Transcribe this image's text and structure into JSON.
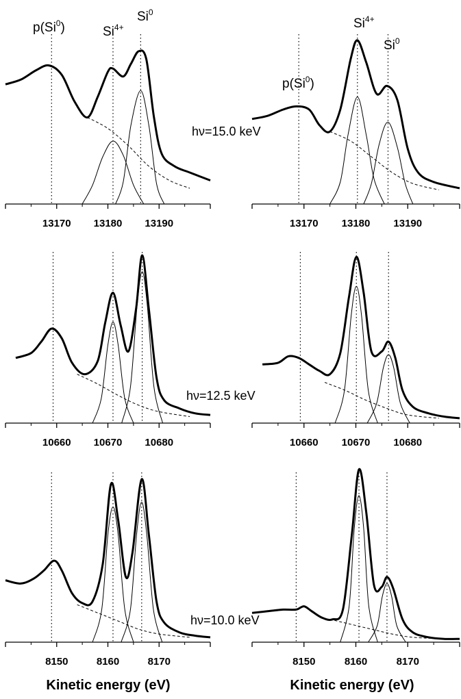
{
  "chart_data": [
    {
      "type": "line",
      "title": "",
      "xticks": [
        13170,
        13180,
        13190
      ],
      "xlim": [
        13160,
        13200
      ],
      "photon_energy_label": "hν=15.0 keV",
      "peak_labels": [
        {
          "base": "p(Si",
          "sup": "0",
          "tail": ")"
        },
        {
          "base": "Si",
          "sup": "4+",
          "tail": ""
        },
        {
          "base": "Si",
          "sup": "0",
          "tail": ""
        }
      ],
      "reference_lines": [
        13169,
        13181,
        13186.4
      ],
      "series": [
        {
          "role": "measured",
          "x": [
            13160.0,
            13163.0,
            13166.0,
            13168.5,
            13171.0,
            13173.5,
            13176.0,
            13178.0,
            13180.0,
            13181.0,
            13183.0,
            13184.5,
            13186.0,
            13187.5,
            13189.0,
            13190.5,
            13193.0,
            13196.0,
            13200.0
          ],
          "y": [
            0.76,
            0.79,
            0.85,
            0.88,
            0.82,
            0.65,
            0.55,
            0.68,
            0.84,
            0.86,
            0.81,
            0.89,
            0.97,
            0.92,
            0.55,
            0.32,
            0.24,
            0.2,
            0.15
          ]
        },
        {
          "role": "component",
          "name": "",
          "x": [
            13175.0,
            13177.0,
            13179.0,
            13181.0,
            13183.0,
            13185.0,
            13187.0
          ],
          "y": [
            0.0,
            0.12,
            0.3,
            0.4,
            0.31,
            0.12,
            0.0
          ]
        },
        {
          "role": "component",
          "name": "",
          "x": [
            13181.5,
            13183.0,
            13184.5,
            13186.4,
            13188.0,
            13189.5,
            13191.0
          ],
          "y": [
            0.0,
            0.14,
            0.5,
            0.72,
            0.5,
            0.13,
            0.0
          ]
        },
        {
          "role": "background",
          "x": [
            13176.0,
            13180.0,
            13184.0,
            13188.0,
            13192.0,
            13196.0
          ],
          "y": [
            0.55,
            0.48,
            0.37,
            0.24,
            0.15,
            0.1
          ]
        }
      ]
    },
    {
      "type": "line",
      "title": "",
      "xticks": [
        13170,
        13180,
        13190
      ],
      "xlim": [
        13160,
        13200
      ],
      "peak_labels": [
        {
          "base": "p(Si",
          "sup": "0",
          "tail": ")"
        },
        {
          "base": "Si",
          "sup": "4+",
          "tail": ""
        },
        {
          "base": "Si",
          "sup": "0",
          "tail": ""
        }
      ],
      "reference_lines": [
        13169,
        13180.3,
        13186.2
      ],
      "series": [
        {
          "role": "measured",
          "x": [
            13160.0,
            13163.0,
            13166.0,
            13168.5,
            13171.0,
            13173.0,
            13175.0,
            13177.0,
            13179.0,
            13180.3,
            13182.0,
            13184.0,
            13186.0,
            13188.0,
            13190.0,
            13192.0,
            13195.0,
            13200.0
          ],
          "y": [
            0.54,
            0.56,
            0.6,
            0.62,
            0.6,
            0.5,
            0.46,
            0.6,
            0.92,
            1.04,
            0.9,
            0.7,
            0.75,
            0.66,
            0.35,
            0.2,
            0.14,
            0.1
          ]
        },
        {
          "role": "component",
          "name": "",
          "x": [
            13175.0,
            13177.0,
            13178.5,
            13180.3,
            13182.0,
            13183.5,
            13185.5
          ],
          "y": [
            0.0,
            0.14,
            0.44,
            0.68,
            0.44,
            0.16,
            0.0
          ]
        },
        {
          "role": "component",
          "name": "",
          "x": [
            13181.5,
            13183.0,
            13184.5,
            13186.2,
            13188.0,
            13189.5,
            13191.0
          ],
          "y": [
            0.0,
            0.13,
            0.38,
            0.52,
            0.36,
            0.13,
            0.0
          ]
        },
        {
          "role": "background",
          "x": [
            13175.0,
            13179.0,
            13183.0,
            13187.0,
            13191.0,
            13196.0
          ],
          "y": [
            0.46,
            0.4,
            0.3,
            0.2,
            0.13,
            0.09
          ]
        }
      ]
    },
    {
      "type": "line",
      "title": "",
      "xticks": [
        10660,
        10670,
        10680
      ],
      "xlim": [
        10650,
        10690
      ],
      "photon_energy_label": "hν=12.5 keV",
      "reference_lines": [
        10659.3,
        10671,
        10676.7
      ],
      "series": [
        {
          "role": "measured",
          "x": [
            10652.0,
            10655.0,
            10657.0,
            10659.0,
            10661.0,
            10663.0,
            10665.5,
            10668.0,
            10669.5,
            10671.0,
            10672.5,
            10674.0,
            10675.5,
            10676.7,
            10678.0,
            10679.5,
            10681.0,
            10684.0,
            10687.0,
            10690.0
          ],
          "y": [
            0.4,
            0.43,
            0.5,
            0.58,
            0.52,
            0.37,
            0.3,
            0.38,
            0.62,
            0.8,
            0.6,
            0.44,
            0.7,
            1.03,
            0.7,
            0.28,
            0.14,
            0.09,
            0.06,
            0.05
          ]
        },
        {
          "role": "component",
          "name": "",
          "x": [
            10667.0,
            10668.7,
            10670.0,
            10671.0,
            10672.0,
            10673.3,
            10675.0
          ],
          "y": [
            0.0,
            0.15,
            0.48,
            0.62,
            0.48,
            0.15,
            0.0
          ]
        },
        {
          "role": "component",
          "name": "",
          "x": [
            10672.7,
            10674.4,
            10675.7,
            10676.7,
            10677.7,
            10679.0,
            10680.7
          ],
          "y": [
            0.0,
            0.22,
            0.72,
            0.93,
            0.72,
            0.22,
            0.0
          ]
        },
        {
          "role": "background",
          "x": [
            10664.0,
            10668.0,
            10672.0,
            10676.0,
            10680.0,
            10686.0
          ],
          "y": [
            0.3,
            0.24,
            0.17,
            0.11,
            0.07,
            0.04
          ]
        }
      ]
    },
    {
      "type": "line",
      "title": "",
      "xticks": [
        10660,
        10670,
        10680
      ],
      "xlim": [
        10650,
        10690
      ],
      "reference_lines": [
        10659.3,
        10670.1,
        10676.3
      ],
      "series": [
        {
          "role": "measured",
          "x": [
            10652.0,
            10655.0,
            10657.0,
            10659.0,
            10661.0,
            10663.0,
            10665.0,
            10667.0,
            10668.7,
            10670.1,
            10671.5,
            10673.0,
            10675.0,
            10676.3,
            10677.6,
            10679.0,
            10681.0,
            10684.0,
            10687.0,
            10690.0
          ],
          "y": [
            0.36,
            0.37,
            0.41,
            0.4,
            0.36,
            0.32,
            0.3,
            0.43,
            0.78,
            1.02,
            0.8,
            0.44,
            0.44,
            0.5,
            0.4,
            0.2,
            0.1,
            0.06,
            0.04,
            0.03
          ]
        },
        {
          "role": "component",
          "name": "",
          "x": [
            10666.0,
            10667.8,
            10669.1,
            10670.1,
            10671.1,
            10672.4,
            10674.2
          ],
          "y": [
            0.0,
            0.2,
            0.66,
            0.84,
            0.66,
            0.2,
            0.0
          ]
        },
        {
          "role": "component",
          "name": "",
          "x": [
            10672.2,
            10674.0,
            10675.3,
            10676.3,
            10677.3,
            10678.6,
            10680.4
          ],
          "y": [
            0.0,
            0.12,
            0.34,
            0.42,
            0.34,
            0.12,
            0.0
          ]
        },
        {
          "role": "background",
          "x": [
            10664.0,
            10668.0,
            10672.0,
            10676.0,
            10680.0,
            10686.0
          ],
          "y": [
            0.25,
            0.2,
            0.14,
            0.09,
            0.05,
            0.03
          ]
        }
      ]
    },
    {
      "type": "line",
      "title": "",
      "xticks": [
        8150,
        8160,
        8170
      ],
      "xlim": [
        8140,
        8180
      ],
      "photon_energy_label": "hν=10.0 keV",
      "reference_lines": [
        8149,
        8161,
        8166.6
      ],
      "series": [
        {
          "role": "measured",
          "x": [
            8140.0,
            8143.0,
            8145.5,
            8147.5,
            8149.5,
            8151.0,
            8153.0,
            8155.0,
            8157.0,
            8159.0,
            8160.6,
            8162.0,
            8163.5,
            8164.8,
            8166.6,
            8168.0,
            8169.5,
            8171.0,
            8174.0,
            8177.0,
            8180.0
          ],
          "y": [
            0.38,
            0.36,
            0.39,
            0.44,
            0.5,
            0.44,
            0.3,
            0.24,
            0.25,
            0.48,
            0.97,
            0.75,
            0.4,
            0.55,
            1.0,
            0.66,
            0.25,
            0.12,
            0.06,
            0.04,
            0.03
          ]
        },
        {
          "role": "component",
          "name": "",
          "x": [
            8157.0,
            8158.8,
            8160.0,
            8161.0,
            8162.0,
            8163.3,
            8165.0
          ],
          "y": [
            0.0,
            0.2,
            0.66,
            0.83,
            0.66,
            0.2,
            0.0
          ]
        },
        {
          "role": "component",
          "name": "",
          "x": [
            8162.6,
            8164.4,
            8165.6,
            8166.6,
            8167.6,
            8168.9,
            8170.6
          ],
          "y": [
            0.0,
            0.2,
            0.66,
            0.86,
            0.66,
            0.2,
            0.0
          ]
        },
        {
          "role": "background",
          "x": [
            8154.0,
            8158.0,
            8162.0,
            8166.0,
            8170.0,
            8176.0
          ],
          "y": [
            0.23,
            0.18,
            0.13,
            0.08,
            0.05,
            0.03
          ]
        }
      ]
    },
    {
      "type": "line",
      "title": "",
      "xticks": [
        8150,
        8160,
        8170
      ],
      "xlim": [
        8140,
        8180
      ],
      "reference_lines": [
        8148.5,
        8160.6,
        8166
      ],
      "series": [
        {
          "role": "measured",
          "x": [
            8140.0,
            8143.0,
            8146.0,
            8148.5,
            8150.0,
            8151.5,
            8153.5,
            8155.5,
            8157.5,
            8159.2,
            8160.6,
            8162.0,
            8163.5,
            8165.0,
            8166.0,
            8167.2,
            8169.0,
            8171.0,
            8174.0,
            8177.0,
            8180.0
          ],
          "y": [
            0.18,
            0.19,
            0.2,
            0.2,
            0.22,
            0.19,
            0.15,
            0.14,
            0.2,
            0.65,
            1.06,
            0.8,
            0.35,
            0.34,
            0.4,
            0.33,
            0.14,
            0.06,
            0.03,
            0.02,
            0.02
          ]
        },
        {
          "role": "component",
          "name": "",
          "x": [
            8157.0,
            8158.7,
            8159.7,
            8160.6,
            8161.5,
            8162.5,
            8164.2
          ],
          "y": [
            0.0,
            0.22,
            0.7,
            0.9,
            0.7,
            0.22,
            0.0
          ]
        },
        {
          "role": "component",
          "name": "",
          "x": [
            8162.4,
            8164.1,
            8165.1,
            8166.0,
            8166.9,
            8167.9,
            8169.6
          ],
          "y": [
            0.0,
            0.1,
            0.28,
            0.36,
            0.28,
            0.1,
            0.0
          ]
        },
        {
          "role": "background",
          "x": [
            8155.0,
            8159.0,
            8163.0,
            8167.0,
            8171.0,
            8177.0
          ],
          "y": [
            0.14,
            0.11,
            0.08,
            0.05,
            0.03,
            0.02
          ]
        }
      ]
    }
  ],
  "axis_titles": [
    "Kinetic energy (eV)",
    "Kinetic energy (eV)"
  ]
}
